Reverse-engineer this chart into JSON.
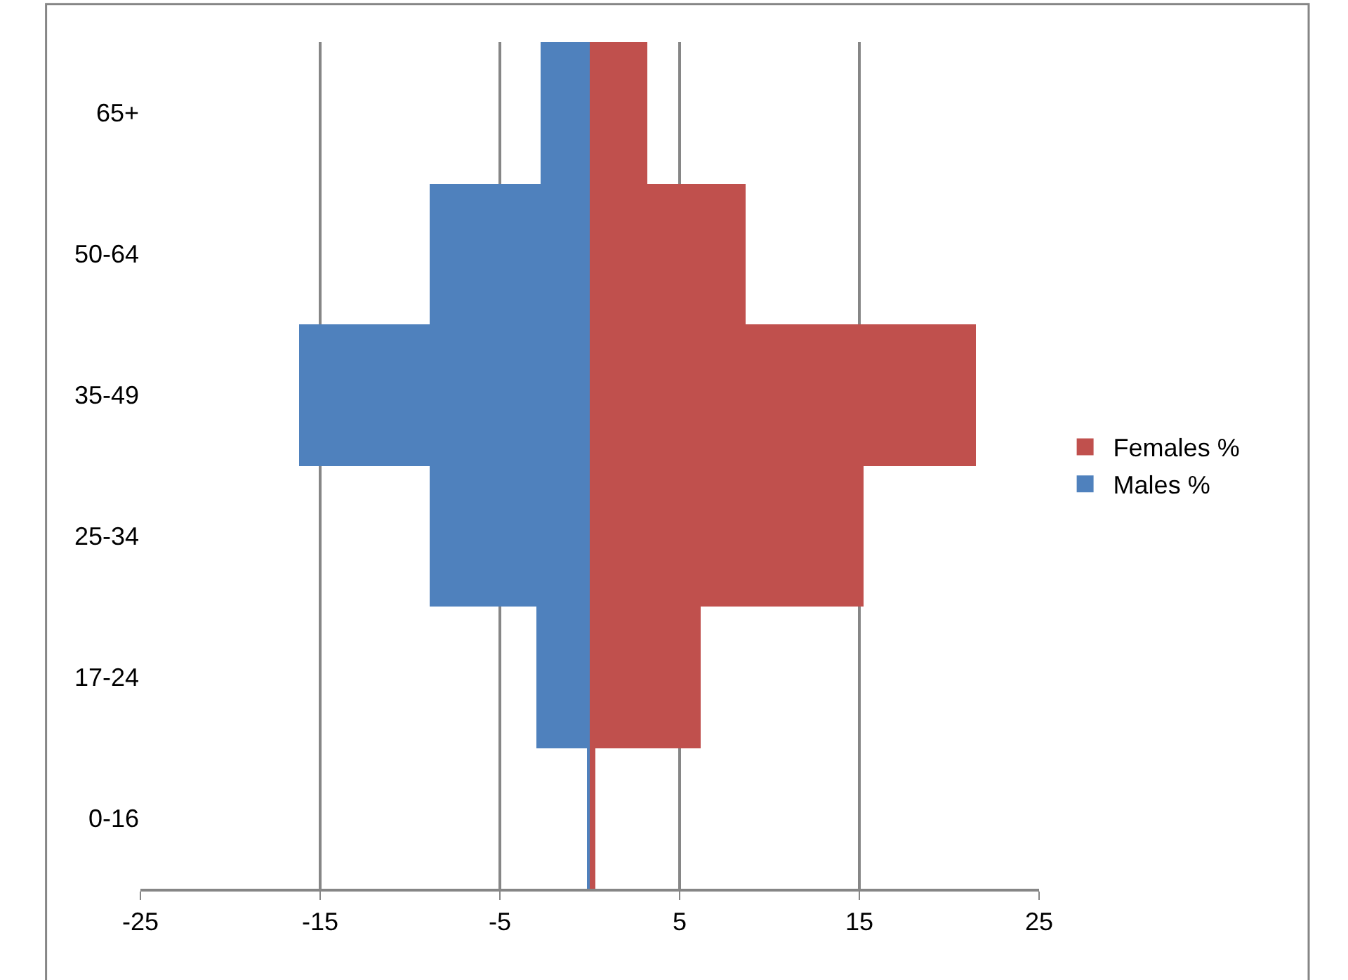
{
  "chart_data": {
    "type": "bar",
    "orientation": "horizontal",
    "stacked": true,
    "categories": [
      "65+",
      "50-64",
      "35-49",
      "25-34",
      "17-24",
      "0-16"
    ],
    "series": [
      {
        "name": "Females %",
        "color": "#c0504d",
        "values": [
          3.2,
          8.7,
          21.5,
          15.2,
          6.2,
          0.3
        ]
      },
      {
        "name": "Males %",
        "color": "#4f81bd",
        "values": [
          -2.7,
          -8.9,
          -16.2,
          -8.9,
          -3.0,
          -0.1
        ]
      }
    ],
    "xlim": [
      -25,
      25
    ],
    "xticks": [
      -25,
      -15,
      -5,
      5,
      15,
      25
    ],
    "grid": "x",
    "legend": "right"
  }
}
